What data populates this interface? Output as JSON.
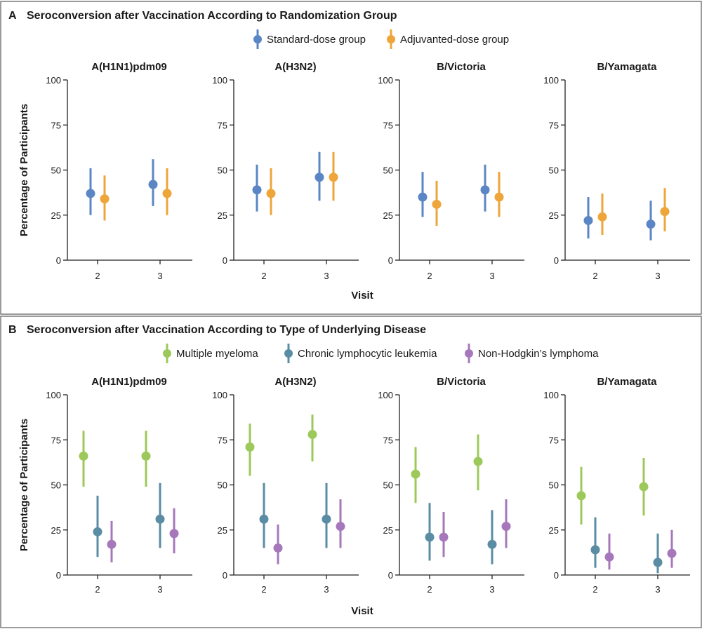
{
  "colors": {
    "standard": "#5b86c5",
    "adjuvanted": "#eea53a",
    "myeloma": "#9cc95a",
    "cll": "#5a8ca4",
    "nhl": "#a678bb",
    "frame": "#7a7a7a",
    "axis": "#222222"
  },
  "chart_data": [
    {
      "type": "scatter",
      "label": "A",
      "title": "Seroconversion after Vaccination According to Randomization Group",
      "ylabel": "Percentage of Participants",
      "xlabel": "Visit",
      "ylim": [
        0,
        100
      ],
      "yticks": [
        0,
        25,
        50,
        75,
        100
      ],
      "categories": [
        "2",
        "3"
      ],
      "legend": [
        {
          "key": "standard",
          "label": "Standard-dose group"
        },
        {
          "key": "adjuvanted",
          "label": "Adjuvanted-dose group"
        }
      ],
      "panels": [
        {
          "title": "A(H1N1)pdm09",
          "series": [
            {
              "key": "standard",
              "values": [
                37,
                42
              ],
              "lower": [
                25,
                30
              ],
              "upper": [
                51,
                56
              ]
            },
            {
              "key": "adjuvanted",
              "values": [
                34,
                37
              ],
              "lower": [
                22,
                25
              ],
              "upper": [
                47,
                51
              ]
            }
          ]
        },
        {
          "title": "A(H3N2)",
          "series": [
            {
              "key": "standard",
              "values": [
                39,
                46
              ],
              "lower": [
                27,
                33
              ],
              "upper": [
                53,
                60
              ]
            },
            {
              "key": "adjuvanted",
              "values": [
                37,
                46
              ],
              "lower": [
                25,
                33
              ],
              "upper": [
                51,
                60
              ]
            }
          ]
        },
        {
          "title": "B/Victoria",
          "series": [
            {
              "key": "standard",
              "values": [
                35,
                39
              ],
              "lower": [
                24,
                27
              ],
              "upper": [
                49,
                53
              ]
            },
            {
              "key": "adjuvanted",
              "values": [
                31,
                35
              ],
              "lower": [
                19,
                24
              ],
              "upper": [
                44,
                49
              ]
            }
          ]
        },
        {
          "title": "B/Yamagata",
          "series": [
            {
              "key": "standard",
              "values": [
                22,
                20
              ],
              "lower": [
                12,
                11
              ],
              "upper": [
                35,
                33
              ]
            },
            {
              "key": "adjuvanted",
              "values": [
                24,
                27
              ],
              "lower": [
                14,
                16
              ],
              "upper": [
                37,
                40
              ]
            }
          ]
        }
      ]
    },
    {
      "type": "scatter",
      "label": "B",
      "title": "Seroconversion after Vaccination According to Type of Underlying Disease",
      "ylabel": "Percentage of Participants",
      "xlabel": "Visit",
      "ylim": [
        0,
        100
      ],
      "yticks": [
        0,
        25,
        50,
        75,
        100
      ],
      "categories": [
        "2",
        "3"
      ],
      "legend": [
        {
          "key": "myeloma",
          "label": "Multiple myeloma"
        },
        {
          "key": "cll",
          "label": "Chronic lymphocytic leukemia"
        },
        {
          "key": "nhl",
          "label": "Non-Hodgkin’s lymphoma"
        }
      ],
      "panels": [
        {
          "title": "A(H1N1)pdm09",
          "series": [
            {
              "key": "myeloma",
              "values": [
                66,
                66
              ],
              "lower": [
                49,
                49
              ],
              "upper": [
                80,
                80
              ]
            },
            {
              "key": "cll",
              "values": [
                24,
                31
              ],
              "lower": [
                10,
                15
              ],
              "upper": [
                44,
                51
              ]
            },
            {
              "key": "nhl",
              "values": [
                17,
                23
              ],
              "lower": [
                7,
                12
              ],
              "upper": [
                30,
                37
              ]
            }
          ]
        },
        {
          "title": "A(H3N2)",
          "series": [
            {
              "key": "myeloma",
              "values": [
                71,
                78
              ],
              "lower": [
                55,
                63
              ],
              "upper": [
                84,
                89
              ]
            },
            {
              "key": "cll",
              "values": [
                31,
                31
              ],
              "lower": [
                15,
                15
              ],
              "upper": [
                51,
                51
              ]
            },
            {
              "key": "nhl",
              "values": [
                15,
                27
              ],
              "lower": [
                6,
                15
              ],
              "upper": [
                28,
                42
              ]
            }
          ]
        },
        {
          "title": "B/Victoria",
          "series": [
            {
              "key": "myeloma",
              "values": [
                56,
                63
              ],
              "lower": [
                40,
                47
              ],
              "upper": [
                71,
                78
              ]
            },
            {
              "key": "cll",
              "values": [
                21,
                17
              ],
              "lower": [
                8,
                6
              ],
              "upper": [
                40,
                36
              ]
            },
            {
              "key": "nhl",
              "values": [
                21,
                27
              ],
              "lower": [
                10,
                15
              ],
              "upper": [
                35,
                42
              ]
            }
          ]
        },
        {
          "title": "B/Yamagata",
          "series": [
            {
              "key": "myeloma",
              "values": [
                44,
                49
              ],
              "lower": [
                28,
                33
              ],
              "upper": [
                60,
                65
              ]
            },
            {
              "key": "cll",
              "values": [
                14,
                7
              ],
              "lower": [
                4,
                1
              ],
              "upper": [
                32,
                23
              ]
            },
            {
              "key": "nhl",
              "values": [
                10,
                12
              ],
              "lower": [
                3,
                4
              ],
              "upper": [
                23,
                25
              ]
            }
          ]
        }
      ]
    }
  ]
}
